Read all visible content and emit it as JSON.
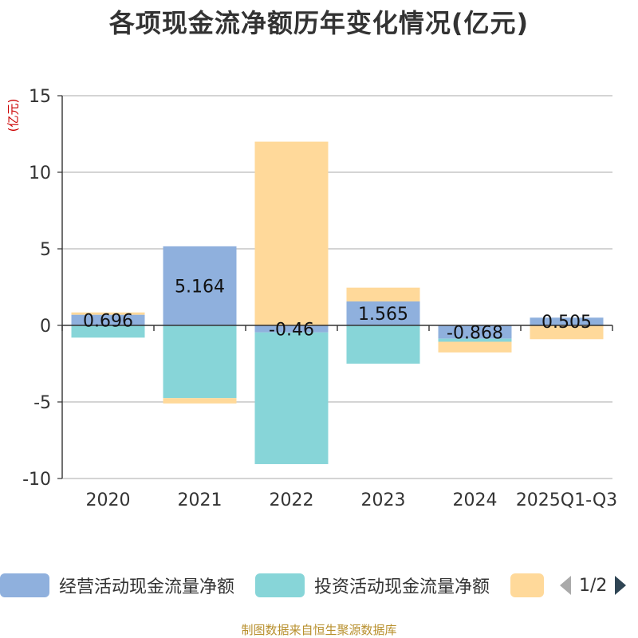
{
  "title": "各项现金流净额历年变化情况(亿元)",
  "y_unit": "(亿元)",
  "source": "制图数据来自恒生聚源数据库",
  "legend_page": "1/2",
  "colors": {
    "operating": "#8fb0dd",
    "investing": "#87d5d8",
    "financing": "#ffd99a",
    "axis": "#333333",
    "grid": "#bbbbbb",
    "unit": "#cc0000",
    "source": "#b8902e",
    "pager_active": "#2f4554",
    "pager_inactive": "#aaaaaa"
  },
  "chart_data": {
    "type": "bar",
    "stacked": true,
    "categories": [
      "2020",
      "2021",
      "2022",
      "2023",
      "2024",
      "2025Q1-Q3"
    ],
    "ylim": [
      -10,
      15
    ],
    "yticks": [
      15,
      10,
      5,
      0,
      -5,
      -10
    ],
    "ytick_labels": [
      "15",
      "10",
      "5",
      "0",
      "-5",
      "-10"
    ],
    "grid": true,
    "legend_position": "bottom",
    "series": [
      {
        "key": "operating",
        "name": "经营活动现金流量净额",
        "values": [
          0.696,
          5.164,
          -0.46,
          1.565,
          -0.868,
          0.505
        ],
        "labels": [
          "0.696",
          "5.164",
          "-0.46",
          "1.565",
          "-0.868",
          "0.505"
        ]
      },
      {
        "key": "investing",
        "name": "投资活动现金流量净额",
        "values": [
          -0.8,
          -4.75,
          -8.6,
          -2.5,
          -0.2,
          0.0
        ]
      },
      {
        "key": "financing",
        "name": "",
        "values": [
          0.15,
          -0.35,
          12.0,
          0.9,
          -0.7,
          -0.9
        ]
      }
    ]
  }
}
